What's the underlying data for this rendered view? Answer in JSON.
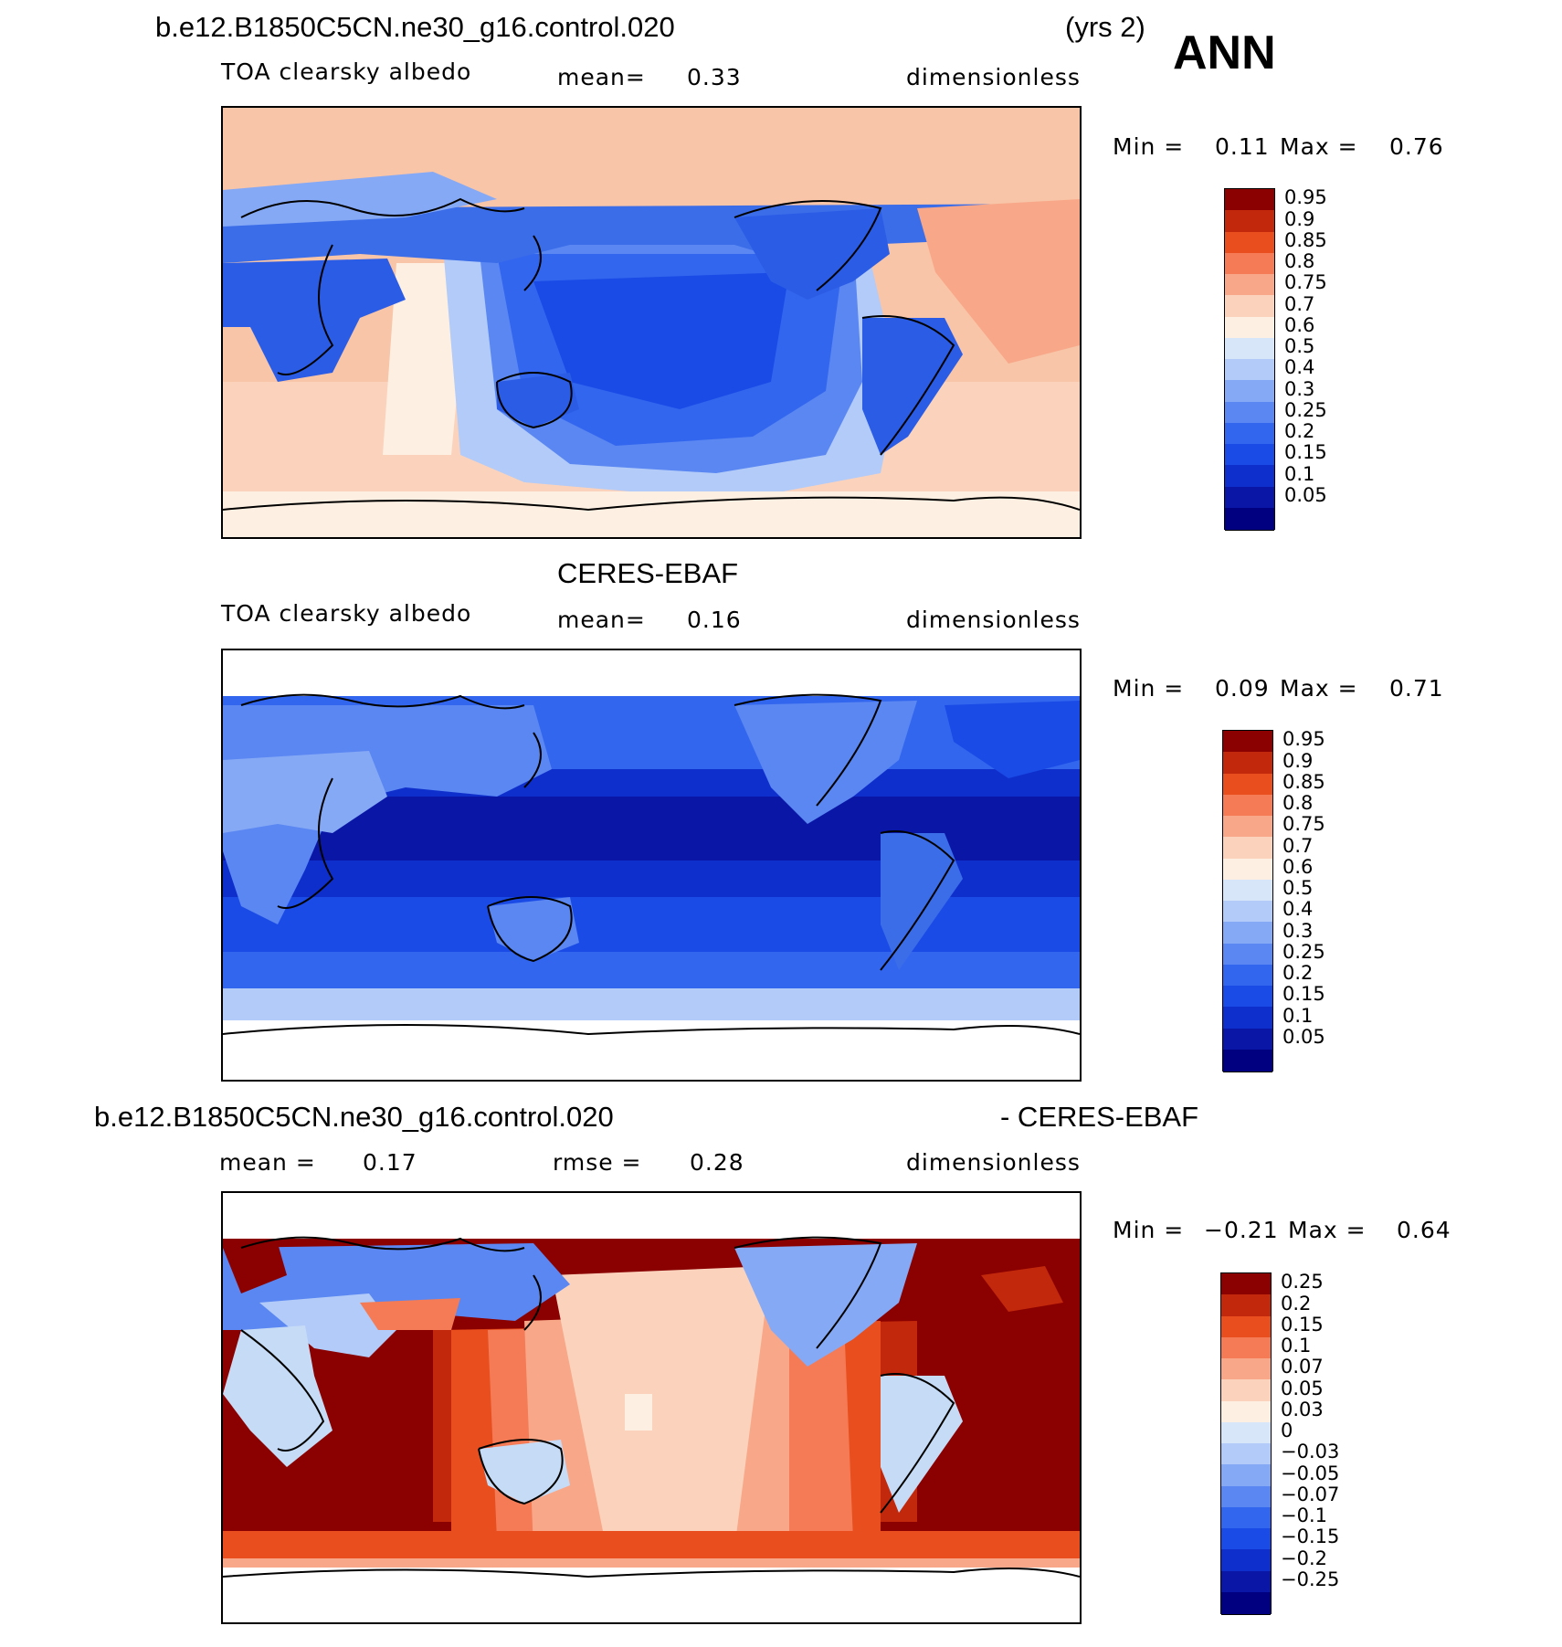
{
  "top_title": {
    "case": "b.e12.B1850C5CN.ne30_g16.control.020",
    "years": "(yrs 2)",
    "season": "ANN"
  },
  "panels": [
    {
      "id": "model",
      "variable": "TOA clearsky albedo",
      "stat1_label": "mean=",
      "stat1_value": "0.33",
      "units": "dimensionless",
      "min_label": "Min =",
      "min_value": "0.11",
      "max_label": "Max =",
      "max_value": "0.76",
      "colorbar_levels": [
        "0.95",
        "0.9",
        "0.85",
        "0.8",
        "0.75",
        "0.7",
        "0.6",
        "0.5",
        "0.4",
        "0.3",
        "0.25",
        "0.2",
        "0.15",
        "0.1",
        "0.05"
      ]
    },
    {
      "id": "obs",
      "title": "CERES-EBAF",
      "variable": "TOA clearsky albedo",
      "stat1_label": "mean=",
      "stat1_value": "0.16",
      "units": "dimensionless",
      "min_label": "Min =",
      "min_value": "0.09",
      "max_label": "Max =",
      "max_value": "0.71",
      "colorbar_levels": [
        "0.95",
        "0.9",
        "0.85",
        "0.8",
        "0.75",
        "0.7",
        "0.6",
        "0.5",
        "0.4",
        "0.3",
        "0.25",
        "0.2",
        "0.15",
        "0.1",
        "0.05"
      ]
    },
    {
      "id": "diff",
      "title_left": "b.e12.B1850C5CN.ne30_g16.control.020",
      "title_right": "- CERES-EBAF",
      "stat1_label": "mean =",
      "stat1_value": "0.17",
      "stat2_label": "rmse =",
      "stat2_value": "0.28",
      "units": "dimensionless",
      "min_label": "Min =",
      "min_value": "−0.21",
      "max_label": "Max =",
      "max_value": "0.64",
      "colorbar_levels": [
        "0.25",
        "0.2",
        "0.15",
        "0.1",
        "0.07",
        "0.05",
        "0.03",
        "0",
        "−0.03",
        "−0.05",
        "−0.07",
        "−0.1",
        "−0.15",
        "−0.2",
        "−0.25"
      ]
    }
  ],
  "colors": {
    "scale": [
      "#000080",
      "#0a17a6",
      "#0f2fcc",
      "#1a4be6",
      "#3366ee",
      "#5a87f2",
      "#86a9f5",
      "#b2cbf8",
      "#d8e6fa",
      "#fdf0e2",
      "#fbd3bd",
      "#f8a889",
      "#f47b55",
      "#e84e1e",
      "#c2280b",
      "#8b0000"
    ],
    "coast": "#000000",
    "model_land": "#2b5ce6",
    "model_ocean_tropics": "#1a3fdc",
    "model_polar": "#f8c5a8",
    "obs_ocean": "#0f2fcc",
    "obs_land": "#3b6de8",
    "diff_ocean_high": "#8b0000",
    "diff_land": "#c6dbf6"
  }
}
